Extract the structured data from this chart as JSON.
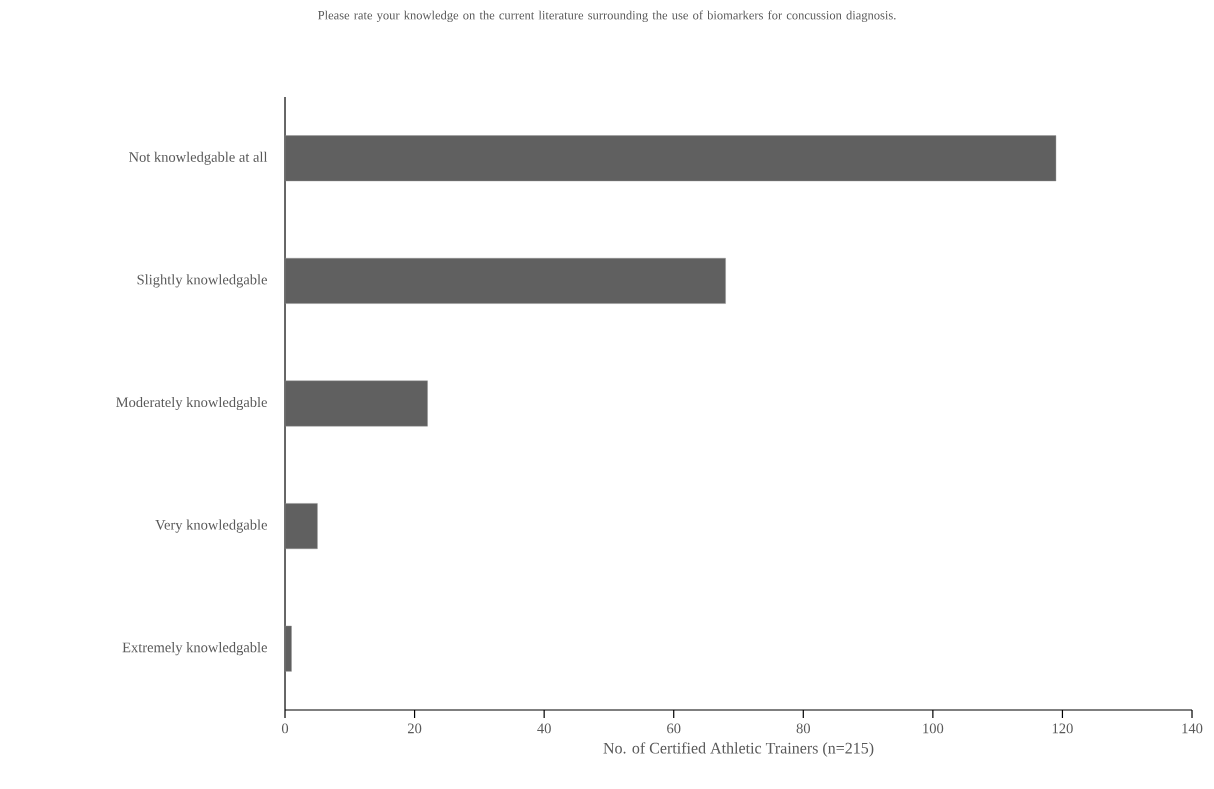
{
  "chart_data": {
    "type": "bar",
    "orientation": "horizontal",
    "title": "Please rate your knowledge on the current literature surrounding the use of biomarkers for concussion diagnosis.",
    "xlabel": "No. of Certified Athletic Trainers (n=215)",
    "categories": [
      "Not knowledgable at all",
      "Slightly knowledgable",
      "Moderately knowledgable",
      "Very knowledgable",
      "Extremely knowledgable"
    ],
    "values": [
      119,
      68,
      22,
      5,
      1
    ],
    "color": "#606060",
    "xlim": [
      0,
      140
    ],
    "xticks": [
      0,
      20,
      40,
      60,
      80,
      100,
      120,
      140
    ]
  }
}
